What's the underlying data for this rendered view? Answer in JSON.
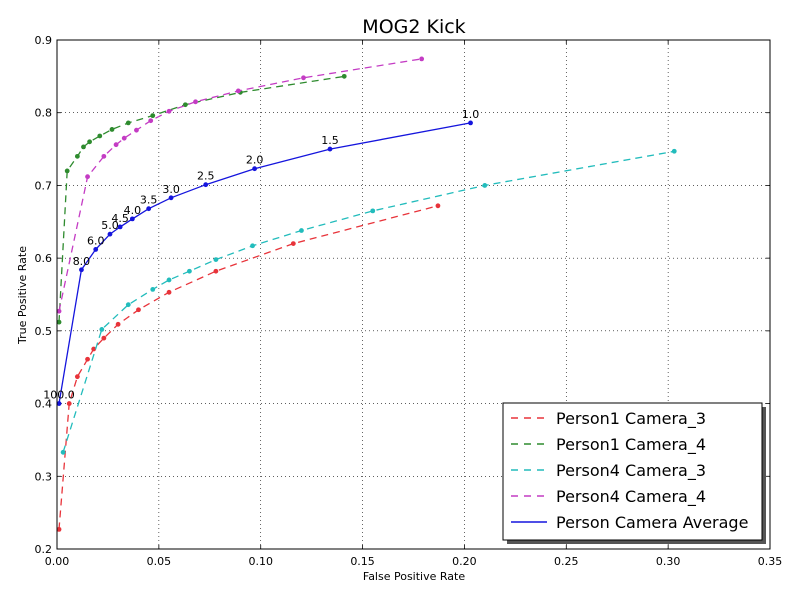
{
  "chart_data": {
    "type": "line",
    "title": "MOG2 Kick",
    "xlabel": "False Positive Rate",
    "ylabel": "True Positive Rate",
    "xlim": [
      0.0,
      0.35
    ],
    "ylim": [
      0.2,
      0.9
    ],
    "xticks": [
      "0.00",
      "0.05",
      "0.10",
      "0.15",
      "0.20",
      "0.25",
      "0.30",
      "0.35"
    ],
    "yticks": [
      "0.2",
      "0.3",
      "0.4",
      "0.5",
      "0.6",
      "0.7",
      "0.8",
      "0.9"
    ],
    "grid": true,
    "legend_position": "bottom-right",
    "series": [
      {
        "name": "Person1 Camera_3",
        "color": "#e8333a",
        "dash": "dashed",
        "x": [
          0.001,
          0.006,
          0.01,
          0.015,
          0.018,
          0.023,
          0.03,
          0.04,
          0.055,
          0.078,
          0.116,
          0.187
        ],
        "y": [
          0.227,
          0.4,
          0.437,
          0.461,
          0.475,
          0.49,
          0.509,
          0.529,
          0.553,
          0.582,
          0.62,
          0.672
        ]
      },
      {
        "name": "Person1 Camera_4",
        "color": "#2e8b2e",
        "dash": "dashed",
        "x": [
          0.001,
          0.005,
          0.01,
          0.013,
          0.016,
          0.021,
          0.027,
          0.035,
          0.047,
          0.063,
          0.09,
          0.141
        ],
        "y": [
          0.512,
          0.72,
          0.74,
          0.753,
          0.76,
          0.768,
          0.777,
          0.786,
          0.796,
          0.811,
          0.828,
          0.85
        ]
      },
      {
        "name": "Person4 Camera_3",
        "color": "#22bcbc",
        "dash": "dashed",
        "x": [
          0.003,
          0.022,
          0.035,
          0.047,
          0.055,
          0.065,
          0.078,
          0.096,
          0.12,
          0.155,
          0.21,
          0.303
        ],
        "y": [
          0.333,
          0.502,
          0.536,
          0.557,
          0.57,
          0.582,
          0.598,
          0.617,
          0.638,
          0.665,
          0.7,
          0.747
        ]
      },
      {
        "name": "Person4 Camera_4",
        "color": "#c43cc4",
        "dash": "dashed",
        "x": [
          0.001,
          0.015,
          0.023,
          0.029,
          0.033,
          0.039,
          0.046,
          0.055,
          0.068,
          0.089,
          0.121,
          0.179
        ],
        "y": [
          0.527,
          0.712,
          0.74,
          0.756,
          0.765,
          0.776,
          0.789,
          0.802,
          0.815,
          0.83,
          0.848,
          0.874
        ]
      },
      {
        "name": "Person Camera Average",
        "color": "#1515dd",
        "dash": "solid",
        "x": [
          0.001,
          0.012,
          0.019,
          0.026,
          0.031,
          0.037,
          0.045,
          0.056,
          0.073,
          0.097,
          0.134,
          0.203
        ],
        "y": [
          0.4,
          0.584,
          0.612,
          0.633,
          0.643,
          0.654,
          0.668,
          0.683,
          0.701,
          0.723,
          0.75,
          0.786
        ],
        "point_labels": [
          "100.0",
          "8.0",
          "6.0",
          "5.0",
          "4.5",
          "4.0",
          "3.5",
          "3.0",
          "2.5",
          "2.0",
          "1.5",
          "1.0"
        ]
      }
    ]
  }
}
